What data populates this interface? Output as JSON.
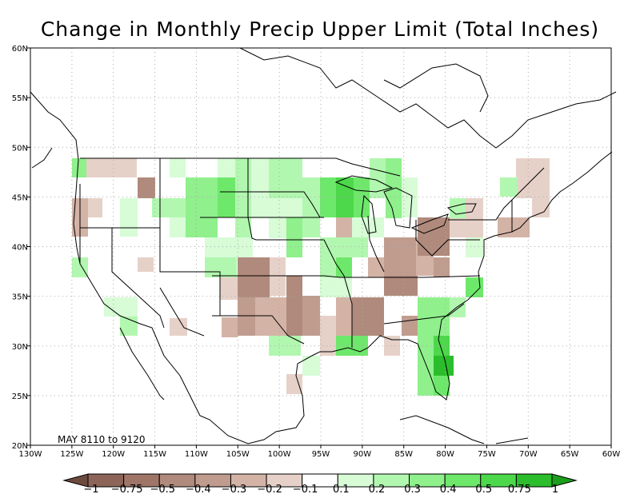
{
  "title": "Change in Monthly Precip Upper Limit (Total Inches)",
  "period_label": "MAY 8110 to 9120",
  "map": {
    "lon_range": [
      -130,
      -60
    ],
    "lat_range": [
      20,
      60
    ],
    "lon_ticks": [
      "130W",
      "125W",
      "120W",
      "115W",
      "110W",
      "105W",
      "100W",
      "95W",
      "90W",
      "85W",
      "80W",
      "75W",
      "70W",
      "65W",
      "60W"
    ],
    "lat_ticks": [
      "20N",
      "25N",
      "30N",
      "35N",
      "40N",
      "45N",
      "50N",
      "55N",
      "60N"
    ],
    "grid": true
  },
  "colorbar": {
    "labels": [
      "−1",
      "−0.75",
      "−0.5",
      "−0.4",
      "−0.3",
      "−0.2",
      "−0.1",
      "0.1",
      "0.2",
      "0.3",
      "0.4",
      "0.5",
      "0.75",
      "1"
    ],
    "colors": [
      "#8c6558",
      "#9e7567",
      "#b08a7c",
      "#c09c8f",
      "#d4b3a7",
      "#e6d1c8",
      "#ffffff",
      "#d7fcd6",
      "#b2f7b0",
      "#8ff08c",
      "#6ee86b",
      "#4cd84a",
      "#2cbd2c"
    ],
    "low_tip_color": "#6d4a3e",
    "high_tip_color": "#1c9e1c"
  },
  "chart_data": {
    "type": "heatmap",
    "title": "Change in Monthly Precip Upper Limit (Total Inches)",
    "x_axis": "longitude",
    "y_axis": "latitude",
    "cell_size_deg": 2.5,
    "cells_approx": [
      {
        "lon": -121,
        "lat": 48,
        "value": -0.2
      },
      {
        "lon": -118,
        "lat": 48,
        "value": -0.2
      },
      {
        "lon": -116,
        "lat": 46,
        "value": -0.4
      },
      {
        "lon": -113,
        "lat": 48,
        "value": 0.2
      },
      {
        "lon": -108,
        "lat": 46,
        "value": 0.3
      },
      {
        "lon": -103,
        "lat": 45,
        "value": 0.5
      },
      {
        "lon": -101,
        "lat": 47,
        "value": 0.2
      },
      {
        "lon": -92,
        "lat": 46,
        "value": 0.5
      },
      {
        "lon": -89,
        "lat": 46,
        "value": 0.5
      },
      {
        "lon": -84,
        "lat": 39,
        "value": -0.4
      },
      {
        "lon": -81,
        "lat": 39,
        "value": -0.4
      },
      {
        "lon": -93,
        "lat": 36,
        "value": -0.4
      },
      {
        "lon": -87,
        "lat": 33,
        "value": -0.5
      },
      {
        "lon": -85,
        "lat": 33,
        "value": -0.5
      },
      {
        "lon": -80,
        "lat": 28,
        "value": 0.75
      },
      {
        "lon": -81,
        "lat": 27,
        "value": 0.5
      },
      {
        "lon": -76,
        "lat": 35,
        "value": 0.5
      },
      {
        "lon": -69,
        "lat": 45,
        "value": -0.2
      }
    ]
  }
}
